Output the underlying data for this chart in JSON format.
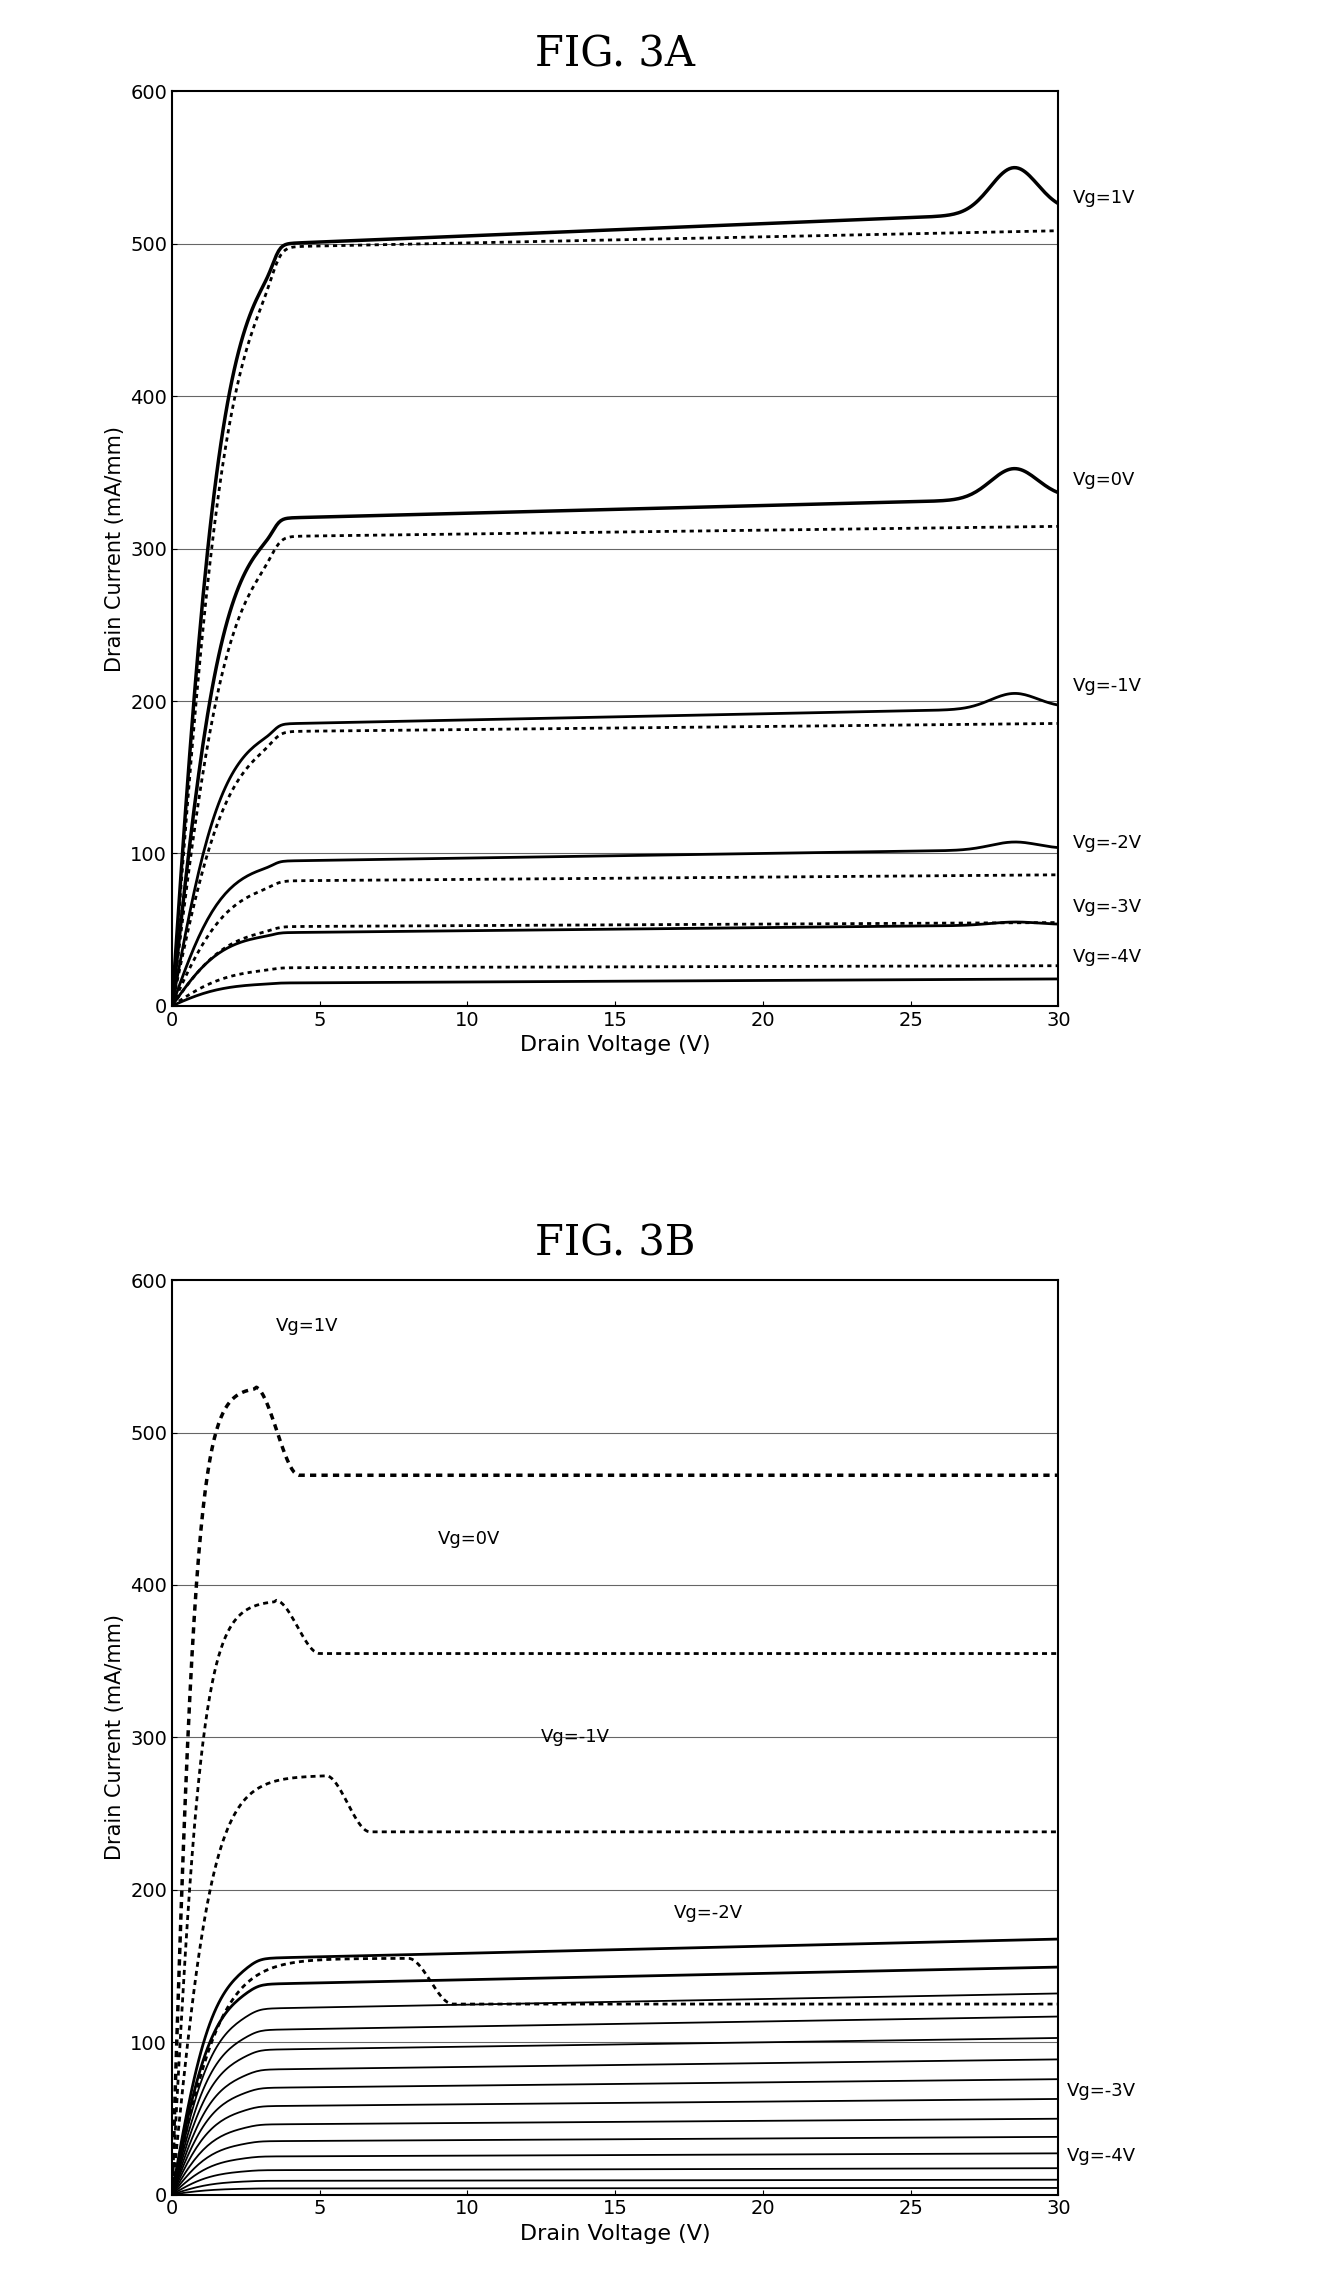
{
  "fig_title_A": "FIG. 3A",
  "fig_title_B": "FIG. 3B",
  "xlabel": "Drain Voltage (V)",
  "ylabel": "Drain Current (mA/mm)",
  "xlim": [
    0,
    30
  ],
  "ylim": [
    0,
    600
  ],
  "xticks": [
    0,
    5,
    10,
    15,
    20,
    25,
    30
  ],
  "yticks": [
    0,
    100,
    200,
    300,
    400,
    500,
    600
  ],
  "background_color": "#ffffff",
  "A_solid_isat": [
    500,
    320,
    185,
    95,
    48,
    15
  ],
  "A_solid_slope": [
    0.8,
    0.5,
    0.4,
    0.3,
    0.2,
    0.1
  ],
  "A_solid_kink_v": [
    28.5,
    28.5,
    28.5,
    28.5,
    28.5,
    28.5
  ],
  "A_solid_kink_bump": [
    30,
    20,
    10,
    5,
    2,
    0
  ],
  "A_dashed_isat": [
    498,
    308,
    180,
    82,
    52,
    25
  ],
  "A_dashed_slope": [
    0.4,
    0.25,
    0.2,
    0.15,
    0.1,
    0.05
  ],
  "A_labels": [
    [
      "Vg=1V",
      530
    ],
    [
      "Vg=0V",
      345
    ],
    [
      "Vg=-1V",
      210
    ],
    [
      "Vg=-2V",
      107
    ],
    [
      "Vg=-3V",
      65
    ],
    [
      "Vg=-4V",
      32
    ]
  ],
  "B_solid_isats": [
    155,
    138,
    122,
    108,
    95,
    82,
    70,
    58,
    46,
    35,
    25,
    16,
    9,
    4
  ],
  "B_solid_knee": 2.8,
  "B_dashed_flat": [
    472,
    355,
    238,
    125
  ],
  "B_dashed_peak": [
    530,
    390,
    275,
    155
  ],
  "B_dashed_vpeak": [
    2.8,
    3.5,
    5.2,
    8.0
  ],
  "B_dashed_vrise": [
    1.2,
    1.5,
    2.0,
    2.5
  ],
  "B_labels_inside": [
    [
      "Vg=1V",
      3.5,
      570
    ],
    [
      "Vg=0V",
      9.0,
      430
    ],
    [
      "Vg=-1V",
      12.5,
      300
    ],
    [
      "Vg=-2V",
      17.0,
      185
    ]
  ],
  "B_labels_right": [
    [
      "Vg=-3V",
      30.3,
      68
    ],
    [
      "Vg=-4V",
      30.3,
      25
    ]
  ]
}
